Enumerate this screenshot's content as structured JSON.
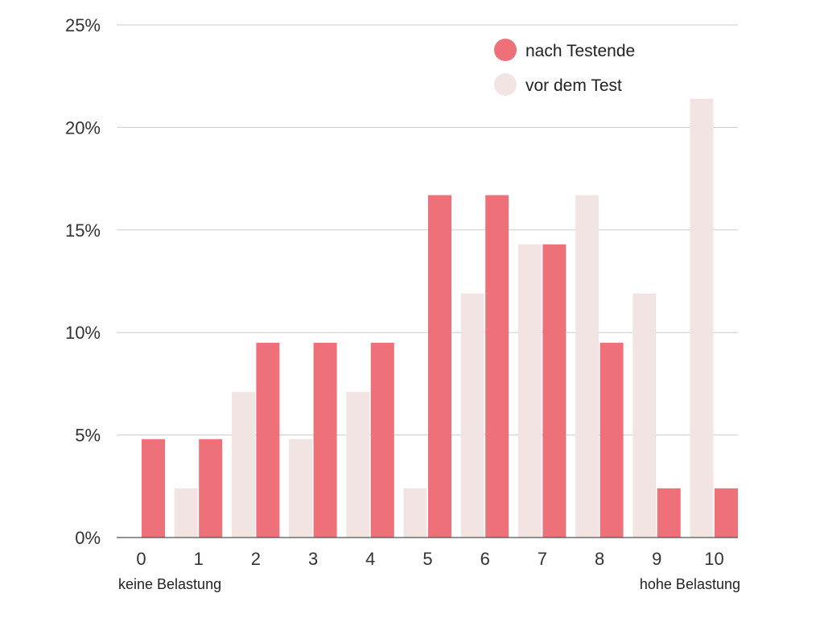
{
  "chart_data": {
    "type": "bar",
    "categories": [
      "0",
      "1",
      "2",
      "3",
      "4",
      "5",
      "6",
      "7",
      "8",
      "9",
      "10"
    ],
    "series": [
      {
        "name": "vor dem Test",
        "color": "#F2E4E3",
        "values": [
          0,
          2.4,
          7.1,
          4.8,
          7.1,
          2.4,
          11.9,
          14.3,
          16.7,
          11.9,
          21.4
        ]
      },
      {
        "name": "nach Testende",
        "color": "#EE717A",
        "values": [
          4.8,
          4.8,
          9.5,
          9.5,
          9.5,
          16.7,
          16.7,
          14.3,
          9.5,
          2.4,
          2.4
        ]
      }
    ],
    "ylim": [
      0,
      25
    ],
    "y_ticks": [
      "0%",
      "5%",
      "10%",
      "15%",
      "20%",
      "25%"
    ],
    "y_tick_values": [
      0,
      5,
      10,
      15,
      20,
      25
    ],
    "grid": true,
    "legend_position": "top-right",
    "legend": [
      {
        "label": "nach Testende",
        "color": "#EE717A"
      },
      {
        "label": "vor dem Test",
        "color": "#F2E4E3"
      }
    ],
    "x_left_label": "keine Belastung",
    "x_right_label": "hohe Belastung"
  }
}
